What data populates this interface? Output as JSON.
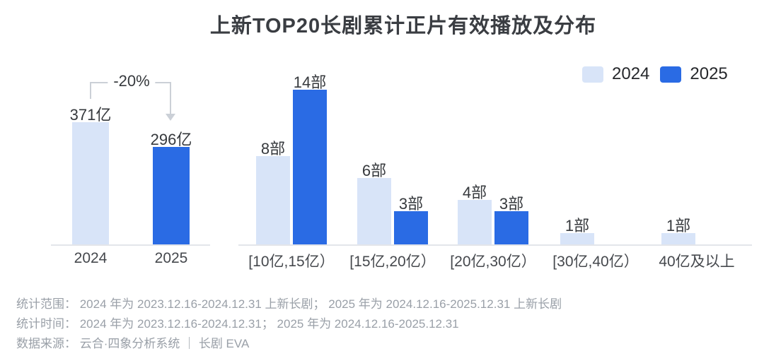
{
  "title": "上新TOP20长剧累计正片有效播放及分布",
  "legend": {
    "items": [
      {
        "label": "2024",
        "color": "#d8e4f8"
      },
      {
        "label": "2025",
        "color": "#2a6be4"
      }
    ]
  },
  "colors": {
    "bar_2024": "#d8e4f8",
    "bar_2025": "#2a6be4",
    "axis_line": "#e3e5ea",
    "arrow": "#cbd0d7",
    "value_label": "#36393d",
    "tick_label": "#45484d",
    "footer_text": "#9aa0a8"
  },
  "chart_data": [
    {
      "type": "bar",
      "name": "total-effective-playback",
      "categories": [
        "2024",
        "2025"
      ],
      "values": [
        371,
        296
      ],
      "value_labels": [
        "371亿",
        "296亿"
      ],
      "unit": "亿",
      "annotation": "-20%",
      "ylim": [
        0,
        400
      ],
      "grid": false
    },
    {
      "type": "bar",
      "name": "playback-range-distribution",
      "categories": [
        "[10亿,15亿）",
        "[15亿,20亿）",
        "[20亿,30亿）",
        "[30亿,40亿）",
        "40亿及以上"
      ],
      "series": [
        {
          "name": "2024",
          "values": [
            8,
            6,
            4,
            1,
            1
          ]
        },
        {
          "name": "2025",
          "values": [
            14,
            3,
            3,
            null,
            null
          ]
        }
      ],
      "label_suffix": "部",
      "ylim": [
        0,
        15
      ],
      "grid": false,
      "legend_position": "top-right"
    }
  ],
  "footer": {
    "lines": [
      "统计范围： 2024 年为 2023.12.16-2024.12.31 上新长剧； 2025 年为 2024.12.16-2025.12.31 上新长剧",
      "统计时间： 2024 年为 2023.12.16-2024.12.31； 2025 年为 2024.12.16-2025.12.31",
      "数据来源： 云合·四象分析系统 ｜ 长剧 EVA"
    ]
  }
}
